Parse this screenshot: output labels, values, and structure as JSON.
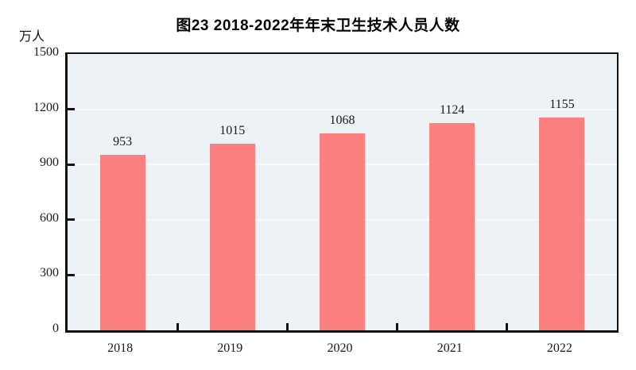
{
  "chart": {
    "title": "图23  2018-2022年年末卫生技术人员人数",
    "unit_label": "万人"
  },
  "chart_data": {
    "type": "bar",
    "title": "图23  2018-2022年年末卫生技术人员人数",
    "categories": [
      "2018",
      "2019",
      "2020",
      "2021",
      "2022"
    ],
    "values": [
      953,
      1015,
      1068,
      1124,
      1155
    ],
    "xlabel": "",
    "ylabel": "万人",
    "ylim": [
      0,
      1500
    ],
    "yticks": [
      0,
      300,
      600,
      900,
      1200,
      1500
    ],
    "grid": true,
    "legend": "none",
    "colors": {
      "bar_fill": "#fa8080",
      "plot_background": "#edf2f6",
      "grid_line": "#f8fbfd",
      "axis": "#111111",
      "text": "#1a1a1a"
    }
  }
}
